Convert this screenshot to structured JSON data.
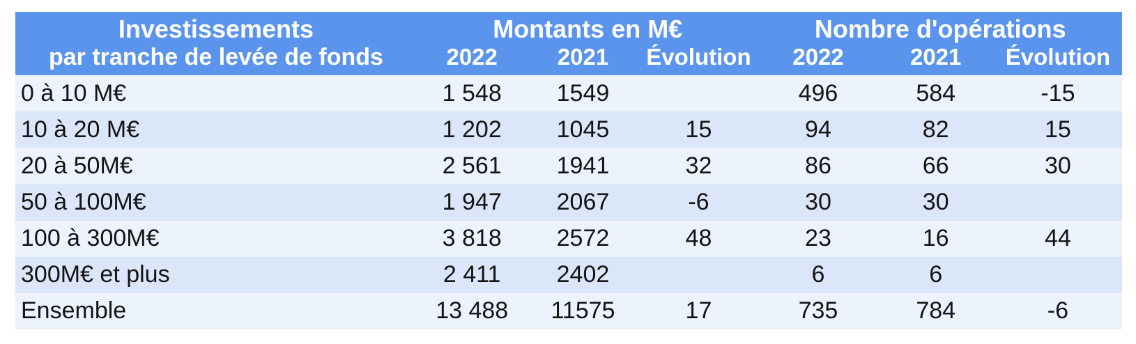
{
  "colors": {
    "page_bg": "#FFFFFF",
    "header_bg": "#5B94EC",
    "header_text": "#FFFFFF",
    "row_light": "#EDF3FC",
    "row_dark": "#DBE6F9",
    "body_text": "#141414"
  },
  "table": {
    "header": {
      "label_line1": "Investissements",
      "label_line2": "par tranche de levée de fonds",
      "montants_group": "Montants en M€",
      "operations_group": "Nombre d'opérations",
      "sub": [
        "2022",
        "2021",
        "Évolution",
        "2022",
        "2021",
        "Évolution"
      ]
    },
    "rows": [
      {
        "label": "0 à 10 M€",
        "values": [
          "1 548",
          "1549",
          "",
          "496",
          "584",
          "-15"
        ]
      },
      {
        "label": "10 à 20 M€",
        "values": [
          "1 202",
          "1045",
          "15",
          "94",
          "82",
          "15"
        ]
      },
      {
        "label": "20 à 50M€",
        "values": [
          "2 561",
          "1941",
          "32",
          "86",
          "66",
          "30"
        ]
      },
      {
        "label": "50 à 100M€",
        "values": [
          "1 947",
          "2067",
          "-6",
          "30",
          "30",
          ""
        ]
      },
      {
        "label": "100 à 300M€",
        "values": [
          "3 818",
          "2572",
          "48",
          "23",
          "16",
          "44"
        ]
      },
      {
        "label": "300M€ et plus",
        "values": [
          "2 411",
          "2402",
          "",
          "6",
          "6",
          ""
        ]
      },
      {
        "label": "Ensemble",
        "values": [
          "13 488",
          "11575",
          "17",
          "735",
          "784",
          "-6"
        ]
      }
    ]
  },
  "chart_data": {
    "type": "table",
    "title": "Investissements par tranche de levée de fonds",
    "column_groups": [
      "Montants en M€",
      "Nombre d'opérations"
    ],
    "columns": [
      "Tranche de levée de fonds",
      "Montants 2022 (M€)",
      "Montants 2021 (M€)",
      "Évolution montants (%)",
      "Nombre d'opérations 2022",
      "Nombre d'opérations 2021",
      "Évolution opérations (%)"
    ],
    "rows": [
      [
        "0 à 10 M€",
        1548,
        1549,
        null,
        496,
        584,
        -15
      ],
      [
        "10 à 20 M€",
        1202,
        1045,
        15,
        94,
        82,
        15
      ],
      [
        "20 à 50M€",
        2561,
        1941,
        32,
        86,
        66,
        30
      ],
      [
        "50 à 100M€",
        1947,
        2067,
        -6,
        30,
        30,
        null
      ],
      [
        "100 à 300M€",
        3818,
        2572,
        48,
        23,
        16,
        44
      ],
      [
        "300M€ et plus",
        2411,
        2402,
        null,
        6,
        6,
        null
      ],
      [
        "Ensemble",
        13488,
        11575,
        17,
        735,
        784,
        -6
      ]
    ]
  }
}
